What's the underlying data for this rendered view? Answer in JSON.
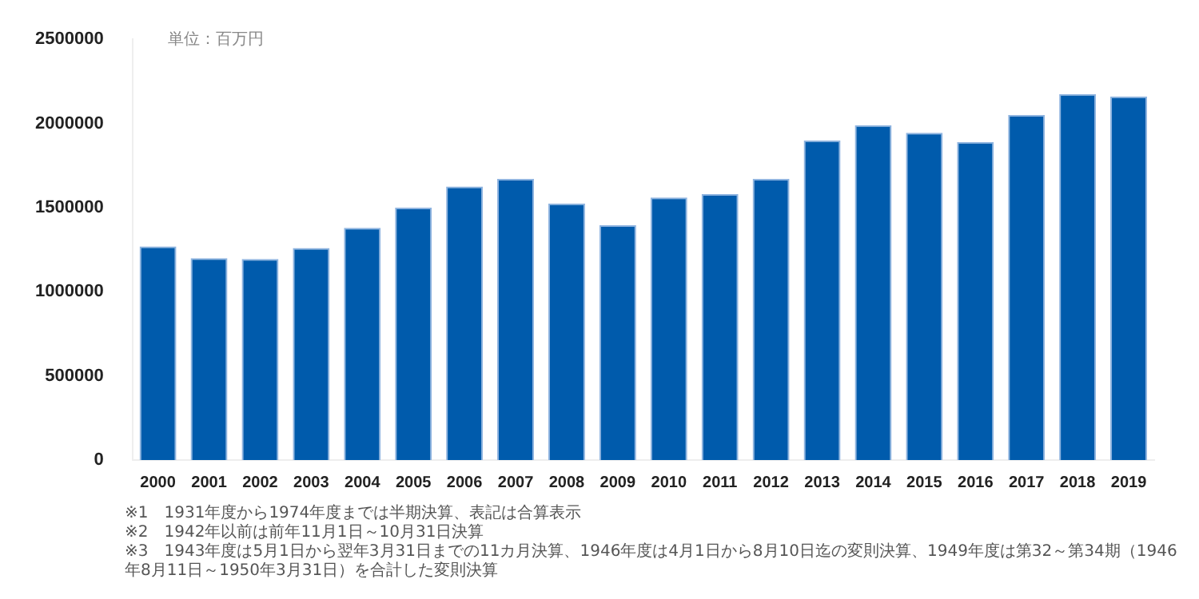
{
  "chart_data": {
    "type": "bar",
    "categories": [
      "2000",
      "2001",
      "2002",
      "2003",
      "2004",
      "2005",
      "2006",
      "2007",
      "2008",
      "2009",
      "2010",
      "2011",
      "2012",
      "2013",
      "2014",
      "2015",
      "2016",
      "2017",
      "2018",
      "2019"
    ],
    "values": [
      1270000,
      1200000,
      1195000,
      1260000,
      1380000,
      1500000,
      1625000,
      1670000,
      1525000,
      1395000,
      1560000,
      1580000,
      1670000,
      1900000,
      1990000,
      1945000,
      1890000,
      2050000,
      2175000,
      2160000
    ],
    "color": "#005bac",
    "ylabel": "単位：百万円",
    "ylim": [
      0,
      2500000
    ],
    "yticks": [
      0,
      500000,
      1000000,
      1500000,
      2000000,
      2500000
    ],
    "grid": false,
    "legend": false,
    "annotations": [
      "※1　1931年度から1974年度までは半期決算、表記は合算表示",
      "※2　1942年以前は前年11月1日～10月31日決算",
      "※3　1943年度は5月1日から翌年3月31日までの11カ月決算、1946年度は4月1日から8月10日迄の変則決算、1949年度は第32～第34期（1946年8月11日～1950年3月31日）を合計した変則決算"
    ]
  }
}
